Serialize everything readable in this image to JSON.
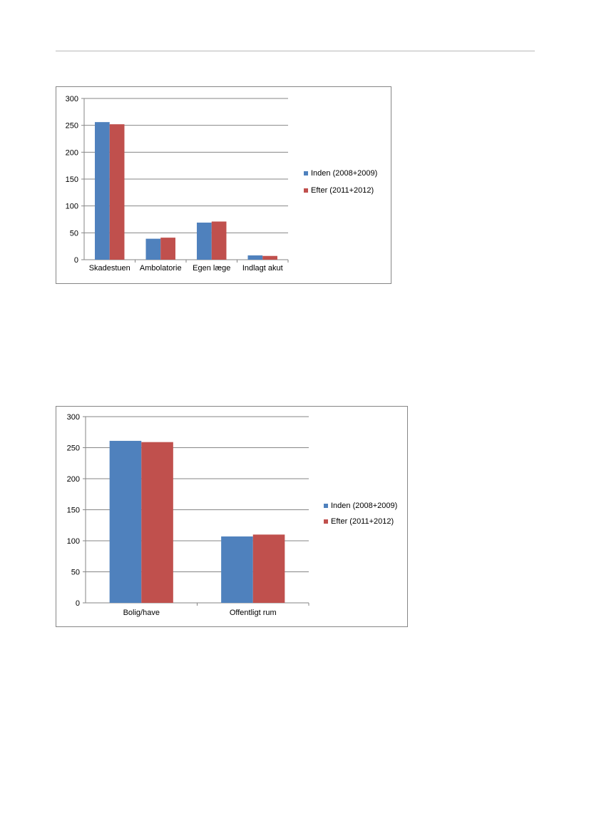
{
  "colors": {
    "series_1": "#4f81bd",
    "series_2": "#c0504d",
    "grid": "#868686"
  },
  "chart_data": [
    {
      "type": "bar",
      "categories": [
        "Skadestuen",
        "Ambolatorie",
        "Egen læge",
        "Indlagt akut"
      ],
      "series": [
        {
          "name": "Inden (2008+2009)",
          "values": [
            256,
            39,
            69,
            8
          ]
        },
        {
          "name": "Efter (2011+2012)",
          "values": [
            252,
            41,
            71,
            7
          ]
        }
      ],
      "ylim": [
        0,
        300
      ],
      "yticks": [
        0,
        50,
        100,
        150,
        200,
        250,
        300
      ],
      "grid": true,
      "legend": "right"
    },
    {
      "type": "bar",
      "categories": [
        "Bolig/have",
        "Offentligt rum"
      ],
      "series": [
        {
          "name": "Inden (2008+2009)",
          "values": [
            261,
            107
          ]
        },
        {
          "name": "Efter (2011+2012)",
          "values": [
            259,
            110
          ]
        }
      ],
      "ylim": [
        0,
        300
      ],
      "yticks": [
        0,
        50,
        100,
        150,
        200,
        250,
        300
      ],
      "grid": true,
      "legend": "right"
    }
  ]
}
